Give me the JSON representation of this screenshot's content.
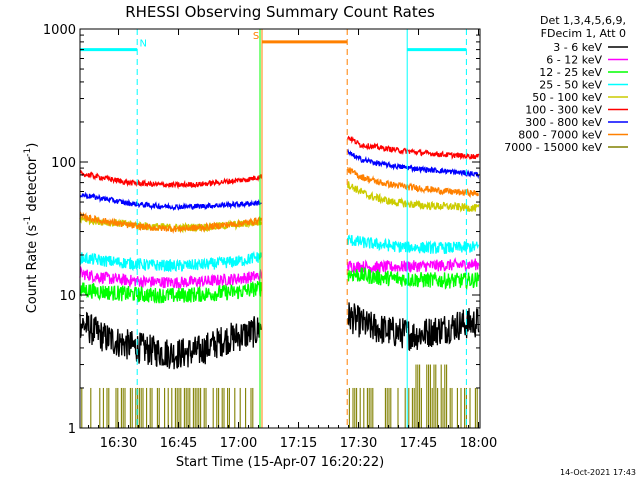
{
  "chart_data": {
    "type": "line",
    "title": "RHESSI Observing Summary Count Rates",
    "xlabel": "Start Time (15-Apr-07 16:20:22)",
    "ylabel_main": "Count Rate (s",
    "ylabel_sup1": "-1",
    "ylabel_mid": " detector",
    "ylabel_sup2": "-1",
    "ylabel_end": ")",
    "yscale": "log",
    "ylim": [
      1,
      1000
    ],
    "xlim_minutes": [
      0,
      100
    ],
    "x_start": "16:20:22",
    "x_ticks": [
      {
        "label": "16:30",
        "minute": 9.63
      },
      {
        "label": "16:45",
        "minute": 24.63
      },
      {
        "label": "17:00",
        "minute": 39.63
      },
      {
        "label": "17:15",
        "minute": 54.63
      },
      {
        "label": "17:30",
        "minute": 69.63
      },
      {
        "label": "17:45",
        "minute": 84.63
      },
      {
        "label": "18:00",
        "minute": 99.63
      }
    ],
    "y_ticks": [
      {
        "label": "1",
        "value": 1
      },
      {
        "label": "10",
        "value": 10
      },
      {
        "label": "100",
        "value": 100
      },
      {
        "label": "1000",
        "value": 1000
      }
    ],
    "legend_header": [
      "Det 1,3,4,5,6,9,",
      "FDecim 1, Att 0"
    ],
    "gaps_minutes": [
      [
        45.5,
        66.8
      ]
    ],
    "series": [
      {
        "name": "3 - 6 keV",
        "color": "#000000",
        "noise": 0.12,
        "points": [
          [
            0,
            6.2
          ],
          [
            6,
            4.8
          ],
          [
            12,
            4.2
          ],
          [
            18,
            3.8
          ],
          [
            24,
            3.6
          ],
          [
            30,
            3.8
          ],
          [
            36,
            4.6
          ],
          [
            44,
            5.3
          ],
          [
            45.4,
            5.8
          ],
          [
            66.9,
            7.0
          ],
          [
            72,
            5.8
          ],
          [
            78,
            5.3
          ],
          [
            84,
            5.0
          ],
          [
            90,
            5.5
          ],
          [
            95,
            6.0
          ],
          [
            99,
            6.2
          ]
        ]
      },
      {
        "name": "6 - 12 keV",
        "color": "#ff00ff",
        "noise": 0.045,
        "points": [
          [
            0,
            14.5
          ],
          [
            8,
            13.2
          ],
          [
            16,
            12.6
          ],
          [
            24,
            12.4
          ],
          [
            32,
            12.7
          ],
          [
            40,
            13.3
          ],
          [
            45.4,
            14.0
          ],
          [
            66.9,
            16.5
          ],
          [
            75,
            16.2
          ],
          [
            85,
            16.5
          ],
          [
            95,
            16.8
          ],
          [
            99,
            17.0
          ]
        ]
      },
      {
        "name": "12 - 25 keV",
        "color": "#00ff00",
        "noise": 0.06,
        "points": [
          [
            0,
            11.0
          ],
          [
            8,
            10.4
          ],
          [
            16,
            10.0
          ],
          [
            24,
            9.9
          ],
          [
            32,
            10.2
          ],
          [
            40,
            10.6
          ],
          [
            45.4,
            11.3
          ],
          [
            66.9,
            14.5
          ],
          [
            75,
            13.5
          ],
          [
            85,
            13.0
          ],
          [
            95,
            12.8
          ],
          [
            99,
            13.0
          ]
        ]
      },
      {
        "name": "25 - 50 keV",
        "color": "#00ffff",
        "noise": 0.045,
        "points": [
          [
            0,
            19.0
          ],
          [
            8,
            17.8
          ],
          [
            16,
            16.9
          ],
          [
            24,
            16.5
          ],
          [
            32,
            17.0
          ],
          [
            40,
            18.0
          ],
          [
            45.4,
            19.5
          ],
          [
            66.9,
            26.0
          ],
          [
            72,
            24.5
          ],
          [
            80,
            23.0
          ],
          [
            90,
            22.5
          ],
          [
            99,
            23.0
          ]
        ]
      },
      {
        "name": "50 - 100 keV",
        "color": "#cccc00",
        "noise": 0.03,
        "points": [
          [
            0,
            37.5
          ],
          [
            8,
            35.0
          ],
          [
            16,
            33.0
          ],
          [
            24,
            32.0
          ],
          [
            32,
            32.5
          ],
          [
            40,
            34.0
          ],
          [
            45.4,
            35.5
          ],
          [
            66.9,
            68.0
          ],
          [
            72,
            56.0
          ],
          [
            78,
            50.0
          ],
          [
            86,
            47.0
          ],
          [
            94,
            46.0
          ],
          [
            99,
            45.0
          ]
        ]
      },
      {
        "name": "100 - 300 keV",
        "color": "#ff0000",
        "noise": 0.02,
        "points": [
          [
            0,
            82.0
          ],
          [
            6,
            76.0
          ],
          [
            12,
            70.0
          ],
          [
            18,
            68.0
          ],
          [
            24,
            67.0
          ],
          [
            30,
            68.0
          ],
          [
            36,
            71.0
          ],
          [
            42,
            74.0
          ],
          [
            45.4,
            78.0
          ],
          [
            66.9,
            155.0
          ],
          [
            70,
            135.0
          ],
          [
            75,
            128.0
          ],
          [
            80,
            122.0
          ],
          [
            86,
            117.0
          ],
          [
            92,
            113.0
          ],
          [
            99,
            110.0
          ]
        ]
      },
      {
        "name": "300 - 800 keV",
        "color": "#0000ff",
        "noise": 0.02,
        "points": [
          [
            0,
            57.0
          ],
          [
            6,
            53.0
          ],
          [
            12,
            49.0
          ],
          [
            18,
            47.0
          ],
          [
            24,
            46.0
          ],
          [
            30,
            46.5
          ],
          [
            36,
            47.5
          ],
          [
            42,
            48.5
          ],
          [
            45.4,
            49.5
          ],
          [
            66.9,
            118.0
          ],
          [
            70,
            105.0
          ],
          [
            75,
            97.0
          ],
          [
            80,
            92.0
          ],
          [
            86,
            88.0
          ],
          [
            92,
            85.0
          ],
          [
            99,
            81.0
          ]
        ]
      },
      {
        "name": "800 - 7000 keV",
        "color": "#ff8000",
        "noise": 0.025,
        "points": [
          [
            0,
            39.0
          ],
          [
            6,
            36.0
          ],
          [
            12,
            33.5
          ],
          [
            18,
            32.0
          ],
          [
            24,
            31.5
          ],
          [
            30,
            32.0
          ],
          [
            36,
            33.5
          ],
          [
            42,
            35.0
          ],
          [
            45.4,
            37.0
          ],
          [
            66.9,
            88.0
          ],
          [
            70,
            78.0
          ],
          [
            75,
            70.0
          ],
          [
            80,
            66.0
          ],
          [
            86,
            63.0
          ],
          [
            92,
            60.0
          ],
          [
            99,
            58.0
          ]
        ]
      },
      {
        "name": "7000 - 15000 keV",
        "color": "#808000",
        "noise": 0.0,
        "style": "binary",
        "points": [
          [
            0,
            2
          ],
          [
            45.4,
            2
          ],
          [
            66.9,
            2
          ],
          [
            99,
            2
          ]
        ]
      }
    ],
    "event_bars": [
      {
        "label": "N",
        "color": "#00ffff",
        "start_minute": 0,
        "end_minute": 14.3,
        "level": 700
      },
      {
        "label": "S",
        "color": "#ff8000",
        "start_minute": 45.5,
        "end_minute": 66.8,
        "level": 800
      },
      {
        "label": "",
        "color": "#00ffff",
        "start_minute": 81.8,
        "end_minute": 96.6,
        "level": 700
      }
    ],
    "vlines": [
      {
        "minute": 14.3,
        "color": "#00ffff",
        "dashed": true
      },
      {
        "minute": 45.0,
        "color": "#00ff00",
        "dashed": false
      },
      {
        "minute": 45.5,
        "color": "#ff8000",
        "dashed": false
      },
      {
        "minute": 66.8,
        "color": "#ff8000",
        "dashed": true
      },
      {
        "minute": 81.8,
        "color": "#00ffff",
        "dashed": false
      },
      {
        "minute": 96.6,
        "color": "#00ffff",
        "dashed": true
      }
    ]
  },
  "timestamp": "14-Oct-2021 17:43"
}
